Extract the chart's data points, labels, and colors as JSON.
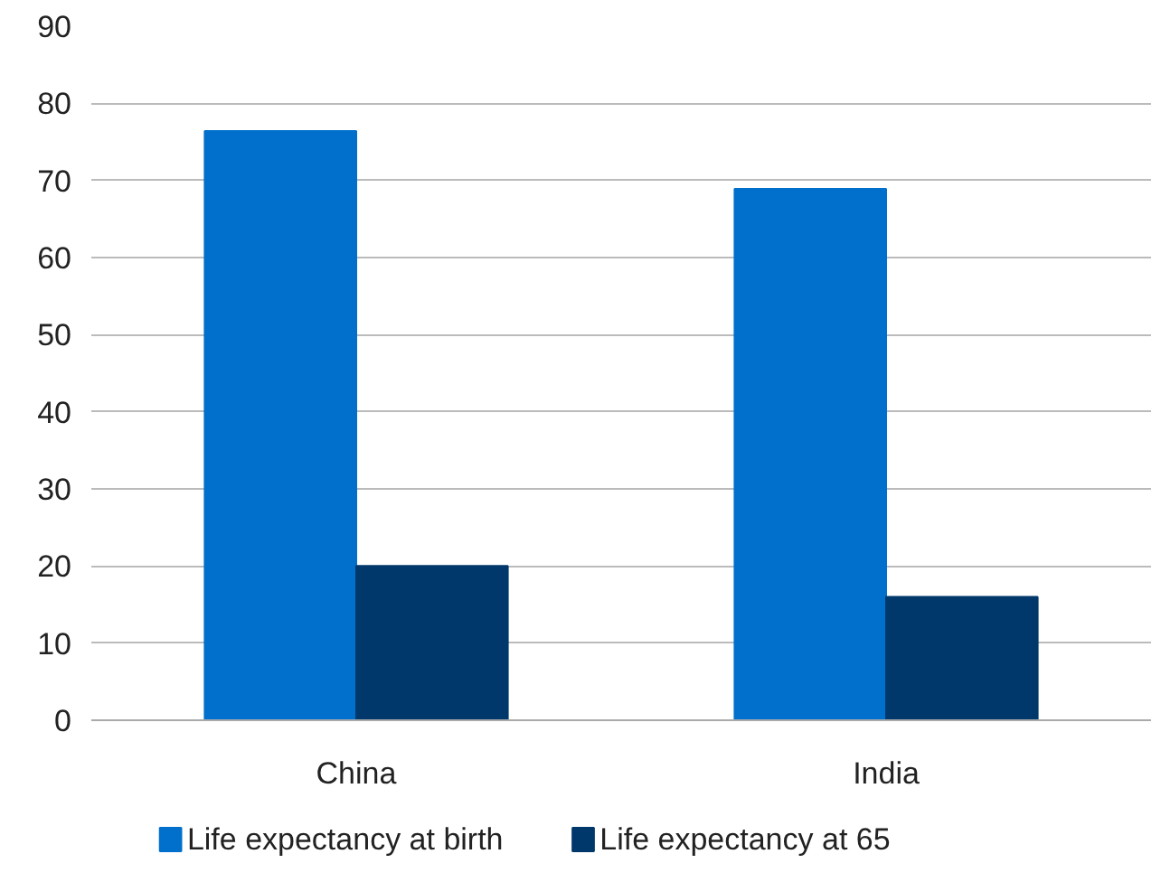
{
  "chart_data": {
    "type": "bar",
    "categories": [
      "China",
      "India"
    ],
    "series": [
      {
        "name": "Life expectancy at birth",
        "color": "#0070cc",
        "values": [
          76.4,
          68.9
        ]
      },
      {
        "name": "Life expectancy at 65",
        "color": "#00386b",
        "values": [
          20.0,
          16.0
        ]
      }
    ],
    "ylim": [
      0,
      90
    ],
    "yticks": [
      0,
      10,
      20,
      30,
      40,
      50,
      60,
      70,
      80,
      90
    ],
    "grid": "y",
    "legend": "bottom"
  }
}
